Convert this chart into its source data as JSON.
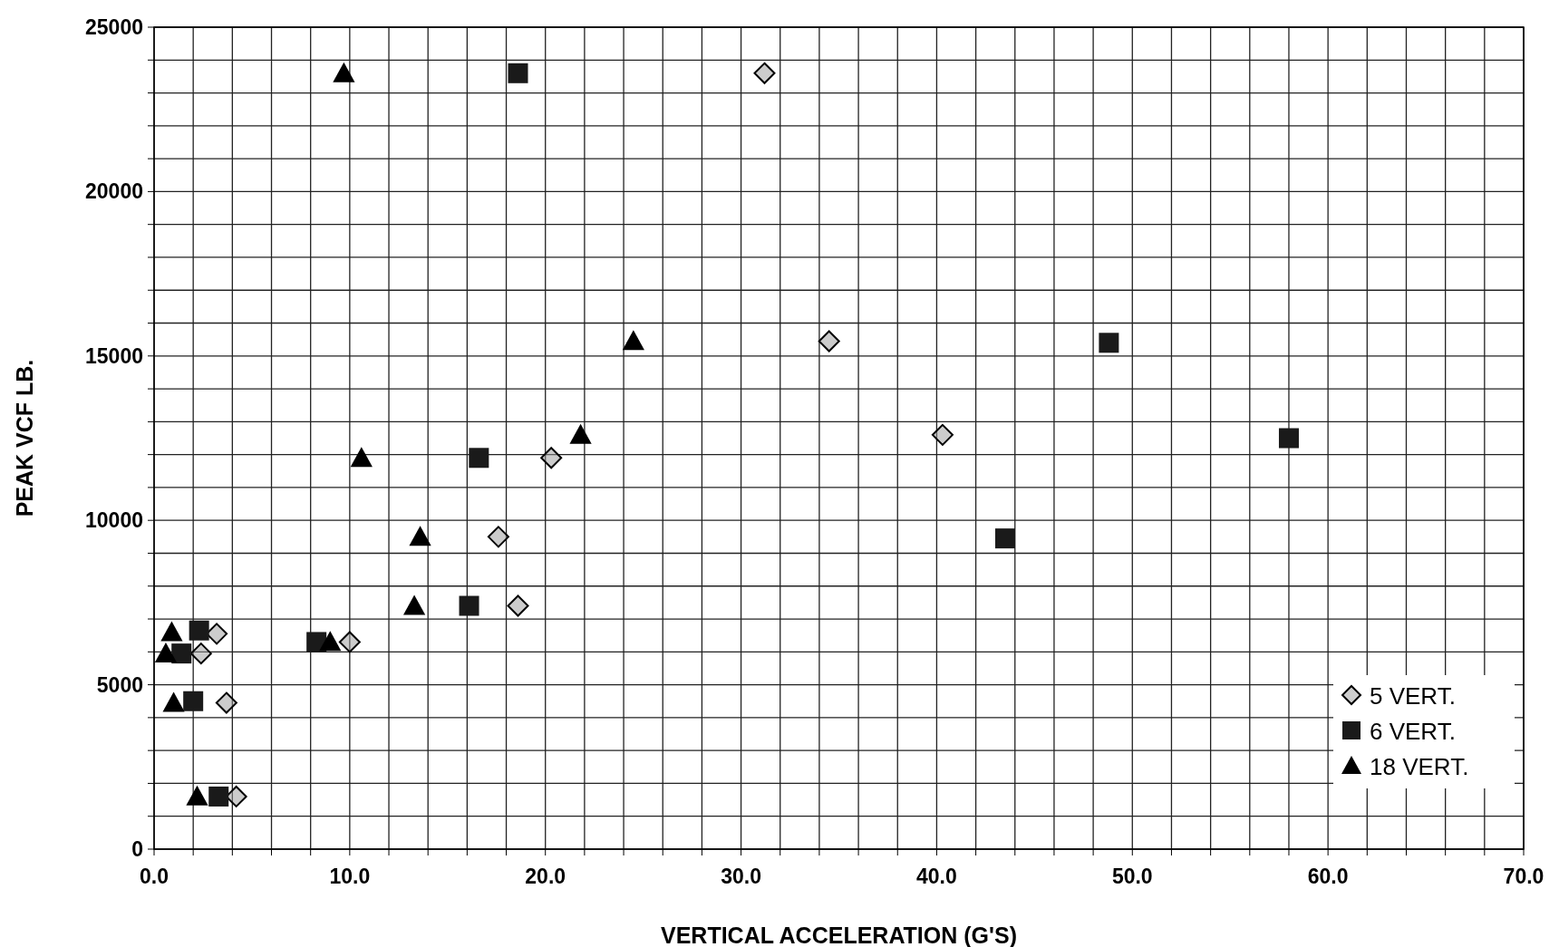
{
  "chart_data": {
    "type": "scatter",
    "xlabel": "VERTICAL ACCELERATION (G'S)",
    "ylabel": "PEAK VCF LB.",
    "xlim": [
      0,
      70
    ],
    "ylim": [
      0,
      25000
    ],
    "xticks": [
      {
        "value": 0,
        "label": "0.0"
      },
      {
        "value": 2,
        "label": null
      },
      {
        "value": 4,
        "label": null
      },
      {
        "value": 6,
        "label": null
      },
      {
        "value": 8,
        "label": null
      },
      {
        "value": 10,
        "label": "10.0"
      },
      {
        "value": 12,
        "label": null
      },
      {
        "value": 14,
        "label": null
      },
      {
        "value": 16,
        "label": null
      },
      {
        "value": 18,
        "label": null
      },
      {
        "value": 20,
        "label": "20.0"
      },
      {
        "value": 22,
        "label": null
      },
      {
        "value": 24,
        "label": null
      },
      {
        "value": 26,
        "label": null
      },
      {
        "value": 28,
        "label": null
      },
      {
        "value": 30,
        "label": "30.0"
      },
      {
        "value": 32,
        "label": null
      },
      {
        "value": 34,
        "label": null
      },
      {
        "value": 36,
        "label": null
      },
      {
        "value": 38,
        "label": null
      },
      {
        "value": 40,
        "label": "40.0"
      },
      {
        "value": 42,
        "label": null
      },
      {
        "value": 44,
        "label": null
      },
      {
        "value": 46,
        "label": null
      },
      {
        "value": 48,
        "label": null
      },
      {
        "value": 50,
        "label": "50.0"
      },
      {
        "value": 52,
        "label": null
      },
      {
        "value": 54,
        "label": null
      },
      {
        "value": 56,
        "label": null
      },
      {
        "value": 58,
        "label": null
      },
      {
        "value": 60,
        "label": "60.0"
      },
      {
        "value": 62,
        "label": null
      },
      {
        "value": 64,
        "label": null
      },
      {
        "value": 66,
        "label": null
      },
      {
        "value": 68,
        "label": null
      },
      {
        "value": 70,
        "label": "70.0"
      }
    ],
    "yticks": [
      0,
      {
        "value": 1000,
        "label": null
      },
      {
        "value": 2000,
        "label": null
      },
      {
        "value": 3000,
        "label": null
      },
      {
        "value": 4000,
        "label": null
      },
      5000,
      {
        "value": 6000,
        "label": null
      },
      {
        "value": 7000,
        "label": null
      },
      {
        "value": 8000,
        "label": null
      },
      {
        "value": 9000,
        "label": null
      },
      10000,
      {
        "value": 11000,
        "label": null
      },
      {
        "value": 12000,
        "label": null
      },
      {
        "value": 13000,
        "label": null
      },
      {
        "value": 14000,
        "label": null
      },
      15000,
      {
        "value": 16000,
        "label": null
      },
      {
        "value": 17000,
        "label": null
      },
      {
        "value": 18000,
        "label": null
      },
      {
        "value": 19000,
        "label": null
      },
      20000,
      {
        "value": 21000,
        "label": null
      },
      {
        "value": 22000,
        "label": null
      },
      {
        "value": 23000,
        "label": null
      },
      {
        "value": 24000,
        "label": null
      },
      25000
    ],
    "grid": true,
    "legend": "bottom right",
    "series": [
      {
        "name": "5 VERT.",
        "color": "#9a9a9a",
        "marker": "diamond",
        "x": [
          31.2,
          34.5,
          40.3,
          20.3,
          17.6,
          18.6,
          10.0,
          3.2,
          2.4,
          3.7,
          4.2
        ],
        "values": [
          23600,
          15450,
          12600,
          11900,
          9500,
          7400,
          6300,
          6550,
          5950,
          4450,
          1600
        ]
      },
      {
        "name": "6 VERT.",
        "color": "#1a1a1a",
        "marker": "square",
        "x": [
          18.6,
          48.8,
          58.0,
          16.6,
          43.5,
          16.1,
          8.3,
          2.3,
          1.4,
          2.0,
          3.3
        ],
        "values": [
          23600,
          15400,
          12500,
          11900,
          9450,
          7400,
          6300,
          6650,
          5950,
          4500,
          1600
        ]
      },
      {
        "name": "18 VERT.",
        "color": "#000000",
        "marker": "triangle",
        "x": [
          9.7,
          24.5,
          21.8,
          10.6,
          13.6,
          13.3,
          9.0,
          0.9,
          0.6,
          1.0,
          2.2
        ],
        "values": [
          23600,
          15450,
          12600,
          11900,
          9500,
          7400,
          6300,
          6600,
          5950,
          4450,
          1600
        ]
      }
    ]
  }
}
